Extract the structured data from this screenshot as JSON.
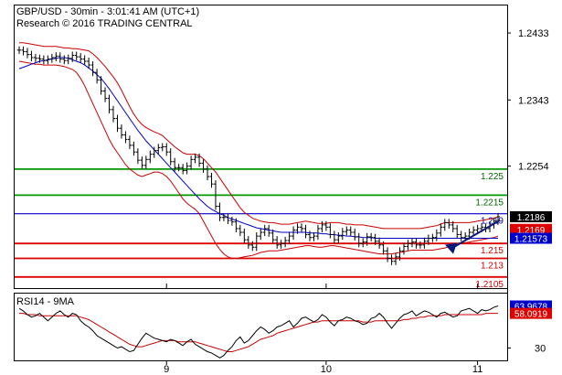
{
  "header": {
    "line1": "GBP/USD - 30min - 3:01:41 AM (UTC+1)",
    "line2": "Research © 2016 TRADING CENTRAL"
  },
  "colors": {
    "resistance": "#009900",
    "support": "#dd0000",
    "pivot": "#0000cc",
    "price": "#000000",
    "bollinger": "#cc0000",
    "ma": "#0000cc",
    "rsi": "#000000",
    "rsi_ma": "#cc0000",
    "badge_price_bg": "#000000",
    "badge_red_bg": "#dd0000",
    "badge_blue_bg": "#0000cc"
  },
  "chart_data": [
    {
      "type": "line",
      "title": "GBP/USD - 30min",
      "xlabel": "",
      "ylabel": "",
      "ylim": [
        2090,
        2470
      ],
      "y_ticks": [
        {
          "label": "1.2433",
          "value": 2433
        },
        {
          "label": "1.2343",
          "value": 2343
        },
        {
          "label": "1.2254",
          "value": 2254
        }
      ],
      "x_ticks": [
        {
          "label": "9",
          "index": 36
        },
        {
          "label": "10",
          "index": 75
        },
        {
          "label": "11",
          "index": 112
        }
      ],
      "levels": [
        {
          "label": "1.225",
          "value": 2250,
          "kind": "resistance"
        },
        {
          "label": "1.2215",
          "value": 2215,
          "kind": "resistance"
        },
        {
          "label": "1.219",
          "value": 2190,
          "kind": "pivot"
        },
        {
          "label": "1.215",
          "value": 2150,
          "kind": "support"
        },
        {
          "label": "1.213",
          "value": 2130,
          "kind": "support"
        },
        {
          "label": "1.2105",
          "value": 2105,
          "kind": "support"
        }
      ],
      "badges": [
        {
          "label": "1.2186",
          "value": 2186,
          "kind": "price"
        },
        {
          "label": "1.2169",
          "value": 2169,
          "kind": "red"
        },
        {
          "label": "1.21573",
          "value": 2157,
          "kind": "blue"
        }
      ],
      "series": [
        {
          "name": "GBP/USD",
          "values": [
            2410,
            2408,
            2404,
            2400,
            2399,
            2398,
            2396,
            2398,
            2400,
            2402,
            2398,
            2396,
            2399,
            2403,
            2401,
            2398,
            2395,
            2390,
            2380,
            2370,
            2355,
            2345,
            2330,
            2318,
            2305,
            2296,
            2290,
            2282,
            2273,
            2262,
            2255,
            2263,
            2270,
            2275,
            2279,
            2280,
            2273,
            2260,
            2252,
            2252,
            2248,
            2254,
            2263,
            2266,
            2258,
            2250,
            2240,
            2230,
            2200,
            2185,
            2185,
            2181,
            2179,
            2170,
            2165,
            2155,
            2148,
            2145,
            2160,
            2165,
            2170,
            2164,
            2155,
            2148,
            2150,
            2154,
            2160,
            2168,
            2172,
            2170,
            2162,
            2158,
            2160,
            2170,
            2175,
            2172,
            2162,
            2155,
            2160,
            2166,
            2168,
            2165,
            2159,
            2150,
            2152,
            2159,
            2158,
            2153,
            2148,
            2140,
            2130,
            2126,
            2132,
            2140,
            2146,
            2150,
            2152,
            2148,
            2148,
            2153,
            2157,
            2158,
            2164,
            2172,
            2178,
            2175,
            2170,
            2162,
            2158,
            2160,
            2165,
            2168,
            2170,
            2172,
            2170,
            2175,
            2180,
            2186
          ]
        },
        {
          "name": "MA",
          "values": [
            2385,
            2387,
            2389,
            2391,
            2393,
            2395,
            2396,
            2397,
            2398,
            2399,
            2400,
            2400,
            2399,
            2397,
            2395,
            2393,
            2390,
            2386,
            2382,
            2377,
            2372,
            2365,
            2358,
            2350,
            2342,
            2334,
            2326,
            2318,
            2310,
            2302,
            2295,
            2288,
            2282,
            2276,
            2270,
            2264,
            2258,
            2252,
            2246,
            2240,
            2234,
            2228,
            2222,
            2216,
            2210,
            2205,
            2200,
            2196,
            2193,
            2190,
            2188,
            2185,
            2183,
            2181,
            2179,
            2177,
            2175,
            2173,
            2171,
            2170,
            2169,
            2168,
            2167,
            2166,
            2165,
            2165,
            2165,
            2165,
            2165,
            2165,
            2165,
            2164,
            2164,
            2164,
            2163,
            2163,
            2162,
            2162,
            2161,
            2161,
            2160,
            2160,
            2159,
            2159,
            2158,
            2158,
            2158,
            2157,
            2157,
            2157,
            2157,
            2157,
            2157,
            2157,
            2157,
            2157,
            2157,
            2157,
            2157,
            2157,
            2157,
            2157,
            2157,
            2157,
            2157,
            2157,
            2157,
            2157,
            2157,
            2157,
            2157,
            2157,
            2157,
            2157,
            2157,
            2157,
            2157,
            2157
          ]
        },
        {
          "name": "Bollinger Upper",
          "values": [
            2420,
            2420,
            2419,
            2418,
            2417,
            2416,
            2415,
            2415,
            2415,
            2415,
            2414,
            2413,
            2413,
            2412,
            2412,
            2411,
            2410,
            2409,
            2405,
            2400,
            2394,
            2388,
            2381,
            2374,
            2366,
            2356,
            2345,
            2334,
            2324,
            2316,
            2310,
            2306,
            2303,
            2300,
            2298,
            2295,
            2290,
            2285,
            2280,
            2276,
            2272,
            2270,
            2270,
            2270,
            2268,
            2264,
            2258,
            2252,
            2246,
            2238,
            2230,
            2222,
            2214,
            2206,
            2198,
            2192,
            2188,
            2184,
            2182,
            2180,
            2179,
            2178,
            2178,
            2177,
            2176,
            2176,
            2176,
            2177,
            2178,
            2179,
            2180,
            2179,
            2178,
            2177,
            2177,
            2177,
            2178,
            2178,
            2178,
            2177,
            2176,
            2176,
            2175,
            2175,
            2175,
            2174,
            2173,
            2172,
            2171,
            2170,
            2170,
            2170,
            2170,
            2170,
            2170,
            2170,
            2170,
            2170,
            2170,
            2171,
            2172,
            2173,
            2174,
            2176,
            2178,
            2178,
            2178,
            2178,
            2178,
            2178,
            2178,
            2179,
            2180,
            2181,
            2182,
            2183,
            2184,
            2186
          ]
        },
        {
          "name": "Bollinger Lower",
          "values": [
            2395,
            2394,
            2393,
            2392,
            2391,
            2391,
            2390,
            2390,
            2390,
            2390,
            2389,
            2388,
            2386,
            2384,
            2380,
            2372,
            2362,
            2350,
            2338,
            2326,
            2314,
            2302,
            2290,
            2280,
            2272,
            2264,
            2256,
            2250,
            2246,
            2242,
            2240,
            2242,
            2244,
            2246,
            2246,
            2244,
            2240,
            2234,
            2226,
            2218,
            2210,
            2204,
            2200,
            2196,
            2190,
            2180,
            2170,
            2160,
            2150,
            2142,
            2136,
            2132,
            2130,
            2130,
            2131,
            2132,
            2133,
            2134,
            2136,
            2138,
            2139,
            2140,
            2140,
            2140,
            2141,
            2142,
            2143,
            2144,
            2145,
            2146,
            2147,
            2147,
            2146,
            2145,
            2145,
            2146,
            2147,
            2147,
            2146,
            2145,
            2144,
            2143,
            2142,
            2141,
            2140,
            2139,
            2138,
            2137,
            2136,
            2136,
            2136,
            2136,
            2137,
            2138,
            2139,
            2140,
            2141,
            2141,
            2141,
            2141,
            2141,
            2141,
            2142,
            2143,
            2144,
            2146,
            2148,
            2149,
            2150,
            2151,
            2152,
            2153,
            2154,
            2155,
            2156,
            2157,
            2158,
            2160
          ]
        }
      ]
    },
    {
      "type": "line",
      "title": "RSI14 - 9MA",
      "xlabel": "",
      "ylabel": "",
      "ylim": [
        20,
        74
      ],
      "y_ticks": [
        {
          "label": "30",
          "value": 30
        }
      ],
      "badges": [
        {
          "label": "63.9678",
          "value": 64,
          "kind": "blue"
        },
        {
          "label": "58.0919",
          "value": 58,
          "kind": "red"
        }
      ],
      "series": [
        {
          "name": "RSI14",
          "values": [
            62,
            60,
            57,
            55,
            56,
            58,
            55,
            52,
            55,
            58,
            60,
            57,
            55,
            58,
            57,
            52,
            49,
            47,
            44,
            40,
            38,
            36,
            34,
            32,
            30,
            31,
            29,
            27,
            28,
            33,
            38,
            42,
            40,
            38,
            37,
            36,
            35,
            37,
            36,
            34,
            32,
            35,
            37,
            33,
            31,
            29,
            27,
            26,
            24,
            22,
            24,
            28,
            31,
            36,
            39,
            34,
            36,
            40,
            44,
            47,
            45,
            42,
            44,
            47,
            48,
            50,
            52,
            47,
            50,
            54,
            55,
            53,
            51,
            53,
            57,
            55,
            51,
            48,
            52,
            53,
            55,
            54,
            52,
            51,
            49,
            50,
            54,
            55,
            58,
            55,
            50,
            46,
            50,
            54,
            57,
            58,
            60,
            56,
            58,
            60,
            59,
            57,
            55,
            58,
            59,
            57,
            55,
            56,
            60,
            61,
            62,
            60,
            58,
            61,
            60,
            61,
            63,
            64
          ]
        },
        {
          "name": "9MA",
          "values": [
            58,
            58,
            57,
            57,
            57,
            56,
            56,
            56,
            56,
            56,
            56,
            56,
            56,
            56,
            56,
            55,
            54,
            53,
            51,
            49,
            47,
            45,
            43,
            41,
            39,
            37,
            35,
            33,
            32,
            31,
            31,
            32,
            33,
            34,
            35,
            36,
            36,
            36,
            36,
            35,
            35,
            35,
            35,
            35,
            34,
            33,
            32,
            31,
            30,
            29,
            28,
            27,
            27,
            28,
            29,
            30,
            31,
            33,
            35,
            37,
            38,
            39,
            40,
            42,
            43,
            44,
            45,
            46,
            47,
            48,
            49,
            50,
            51,
            51,
            52,
            52,
            52,
            52,
            52,
            52,
            52,
            52,
            52,
            52,
            51,
            51,
            51,
            52,
            52,
            52,
            52,
            52,
            52,
            52,
            53,
            53,
            54,
            54,
            55,
            55,
            56,
            56,
            56,
            56,
            57,
            57,
            57,
            57,
            57,
            57,
            57,
            57,
            57,
            57,
            58,
            58,
            58,
            58
          ]
        }
      ]
    }
  ]
}
